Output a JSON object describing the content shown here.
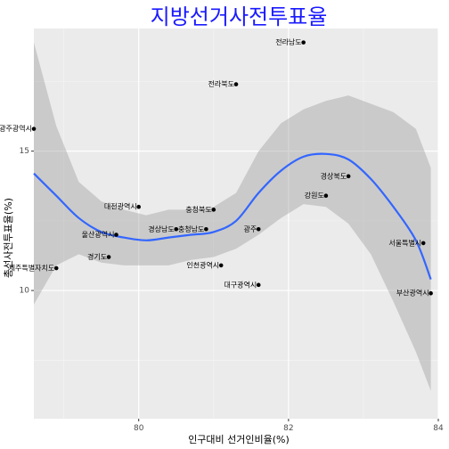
{
  "chart_data": {
    "type": "scatter",
    "title": "지방선거사전투표율",
    "xlabel": "인구대비 선거인비율(%)",
    "ylabel": "총선사전투표율(%)",
    "xlim": [
      78.6,
      84.0
    ],
    "ylim": [
      5.4,
      19.4
    ],
    "x_ticks": [
      80,
      82,
      84
    ],
    "y_ticks": [
      10,
      15
    ],
    "x_tick_labels": [
      "80",
      "82",
      "84"
    ],
    "y_tick_labels": [
      "10",
      "15"
    ],
    "grid": true,
    "points": [
      {
        "label": "전라남도",
        "x": 82.2,
        "y": 18.9
      },
      {
        "label": "전라북도",
        "x": 81.3,
        "y": 17.4
      },
      {
        "label": "광주광역시",
        "x": 78.6,
        "y": 15.8
      },
      {
        "label": "경상북도",
        "x": 82.8,
        "y": 14.1
      },
      {
        "label": "강원도",
        "x": 82.5,
        "y": 13.4
      },
      {
        "label": "대전광역시",
        "x": 80.0,
        "y": 13.0
      },
      {
        "label": "충청북도",
        "x": 81.0,
        "y": 12.9
      },
      {
        "label": "경상남도",
        "x": 80.5,
        "y": 12.2
      },
      {
        "label": "충청남도",
        "x": 80.9,
        "y": 12.2
      },
      {
        "label": "광주",
        "x": 81.6,
        "y": 12.2
      },
      {
        "label": "울산광역시",
        "x": 79.7,
        "y": 12.0
      },
      {
        "label": "서울특별시",
        "x": 83.8,
        "y": 11.7
      },
      {
        "label": "경기도",
        "x": 79.6,
        "y": 11.2
      },
      {
        "label": "제주특별자치도",
        "x": 78.9,
        "y": 10.8
      },
      {
        "label": "인천광역시",
        "x": 81.1,
        "y": 10.9
      },
      {
        "label": "대구광역시",
        "x": 81.6,
        "y": 10.2
      },
      {
        "label": "부산광역시",
        "x": 83.9,
        "y": 9.9
      }
    ],
    "smooth_line": {
      "method": "loess",
      "color": "#3366ff",
      "x": [
        78.6,
        78.9,
        79.2,
        79.5,
        79.8,
        80.1,
        80.4,
        80.7,
        81.0,
        81.3,
        81.6,
        81.9,
        82.2,
        82.5,
        82.8,
        83.1,
        83.4,
        83.7,
        83.9
      ],
      "y": [
        14.2,
        13.4,
        12.6,
        12.1,
        11.9,
        11.8,
        11.9,
        12.0,
        12.1,
        12.5,
        13.5,
        14.3,
        14.8,
        14.9,
        14.7,
        14.0,
        13.0,
        11.8,
        10.4
      ],
      "ci_lower": [
        9.5,
        10.9,
        11.3,
        11.0,
        10.9,
        10.9,
        10.9,
        11.1,
        11.2,
        11.5,
        12.0,
        12.6,
        13.1,
        13.0,
        12.4,
        11.3,
        9.6,
        7.8,
        6.4
      ],
      "ci_upper": [
        18.9,
        15.9,
        13.9,
        13.2,
        12.9,
        12.7,
        12.9,
        12.9,
        13.0,
        13.5,
        15.0,
        16.0,
        16.5,
        16.8,
        17.0,
        16.7,
        16.4,
        15.8,
        14.4
      ]
    }
  }
}
